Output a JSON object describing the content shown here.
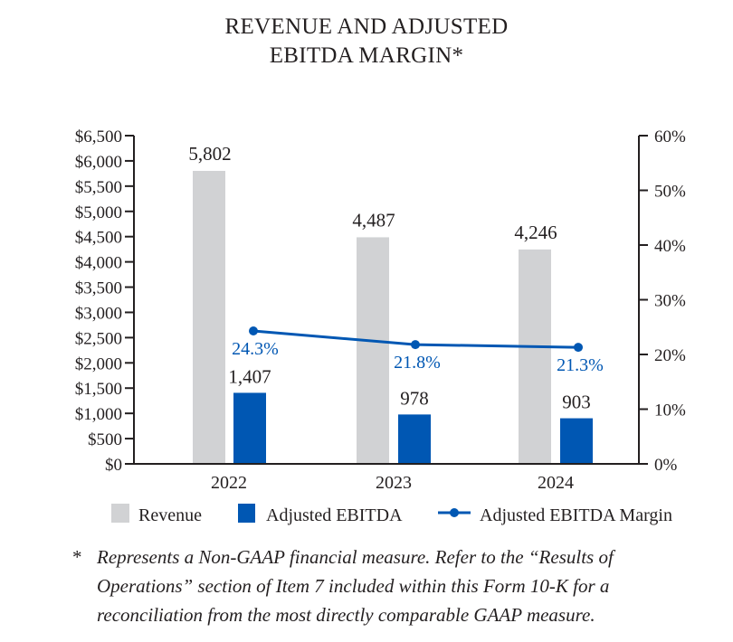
{
  "title_lines": [
    "REVENUE AND ADJUSTED",
    "EBITDA MARGIN*"
  ],
  "footnote": {
    "marker": "*",
    "text": "Represents a Non-GAAP financial measure. Refer to the “Results of Operations” section of Item 7 included within this Form 10-K for a reconciliation from the most directly comparable GAAP measure."
  },
  "colors": {
    "revenue": "#d1d2d4",
    "adjusted_ebitda": "#0057b3",
    "margin": "#0057b3",
    "axis": "#231f20"
  },
  "chart_data": {
    "type": "bar",
    "title": "REVENUE AND ADJUSTED EBITDA MARGIN*",
    "categories": [
      "2022",
      "2023",
      "2024"
    ],
    "series": [
      {
        "name": "Revenue",
        "type": "bar",
        "axis": "left",
        "values": [
          5802,
          4487,
          4246
        ],
        "labels": [
          "5,802",
          "4,487",
          "4,246"
        ]
      },
      {
        "name": "Adjusted EBITDA",
        "type": "bar",
        "axis": "left",
        "values": [
          1407,
          978,
          903
        ],
        "labels": [
          "1,407",
          "978",
          "903"
        ]
      },
      {
        "name": "Adjusted EBITDA Margin",
        "type": "line",
        "axis": "right",
        "values": [
          24.3,
          21.8,
          21.3
        ],
        "labels": [
          "24.3%",
          "21.8%",
          "21.3%"
        ]
      }
    ],
    "y_left": {
      "range": [
        0,
        6500
      ],
      "ticks": [
        0,
        500,
        1000,
        1500,
        2000,
        2500,
        3000,
        3500,
        4000,
        4500,
        5000,
        5500,
        6000,
        6500
      ],
      "tick_labels": [
        "$0",
        "$500",
        "$1,000",
        "$1,500",
        "$2,000",
        "$2,500",
        "$3,000",
        "$3,500",
        "$4,000",
        "$4,500",
        "$5,000",
        "$5,500",
        "$6,000",
        "$6,500"
      ]
    },
    "y_right": {
      "range": [
        0,
        60
      ],
      "ticks": [
        0,
        10,
        20,
        30,
        40,
        50,
        60
      ],
      "tick_labels": [
        "0%",
        "10%",
        "20%",
        "30%",
        "40%",
        "50%",
        "60%"
      ]
    },
    "grid": false,
    "legend": "bottom"
  }
}
